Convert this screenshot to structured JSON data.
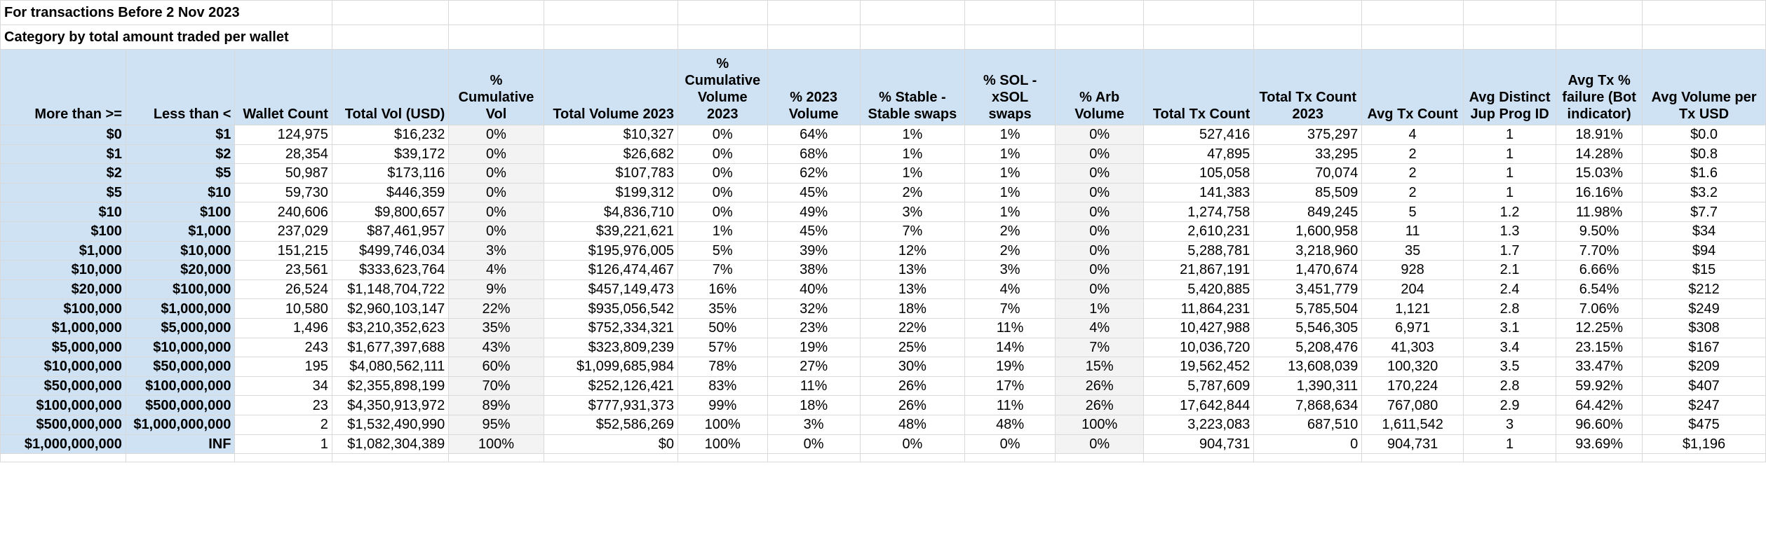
{
  "title": "For transactions Before 2 Nov 2023",
  "subtitle": "Category by total amount traded per wallet",
  "headers": [
    "More than >=",
    "Less than <",
    "Wallet Count",
    "Total Vol (USD)",
    "% Cumulative Vol",
    "Total Volume 2023",
    "% Cumulative Volume 2023",
    "% 2023 Volume",
    "% Stable - Stable swaps",
    "% SOL - xSOL swaps",
    "% Arb Volume",
    "Total Tx Count",
    "Total Tx Count 2023",
    "Avg Tx Count",
    "Avg Distinct Jup Prog ID",
    "Avg Tx % failure (Bot indicator)",
    "Avg Volume per Tx USD"
  ],
  "rows": [
    [
      "$0",
      "$1",
      "124,975",
      "$16,232",
      "0%",
      "$10,327",
      "0%",
      "64%",
      "1%",
      "1%",
      "0%",
      "527,416",
      "375,297",
      "4",
      "1",
      "18.91%",
      "$0.0"
    ],
    [
      "$1",
      "$2",
      "28,354",
      "$39,172",
      "0%",
      "$26,682",
      "0%",
      "68%",
      "1%",
      "1%",
      "0%",
      "47,895",
      "33,295",
      "2",
      "1",
      "14.28%",
      "$0.8"
    ],
    [
      "$2",
      "$5",
      "50,987",
      "$173,116",
      "0%",
      "$107,783",
      "0%",
      "62%",
      "1%",
      "1%",
      "0%",
      "105,058",
      "70,074",
      "2",
      "1",
      "15.03%",
      "$1.6"
    ],
    [
      "$5",
      "$10",
      "59,730",
      "$446,359",
      "0%",
      "$199,312",
      "0%",
      "45%",
      "2%",
      "1%",
      "0%",
      "141,383",
      "85,509",
      "2",
      "1",
      "16.16%",
      "$3.2"
    ],
    [
      "$10",
      "$100",
      "240,606",
      "$9,800,657",
      "0%",
      "$4,836,710",
      "0%",
      "49%",
      "3%",
      "1%",
      "0%",
      "1,274,758",
      "849,245",
      "5",
      "1.2",
      "11.98%",
      "$7.7"
    ],
    [
      "$100",
      "$1,000",
      "237,029",
      "$87,461,957",
      "0%",
      "$39,221,621",
      "1%",
      "45%",
      "7%",
      "2%",
      "0%",
      "2,610,231",
      "1,600,958",
      "11",
      "1.3",
      "9.50%",
      "$34"
    ],
    [
      "$1,000",
      "$10,000",
      "151,215",
      "$499,746,034",
      "3%",
      "$195,976,005",
      "5%",
      "39%",
      "12%",
      "2%",
      "0%",
      "5,288,781",
      "3,218,960",
      "35",
      "1.7",
      "7.70%",
      "$94"
    ],
    [
      "$10,000",
      "$20,000",
      "23,561",
      "$333,623,764",
      "4%",
      "$126,474,467",
      "7%",
      "38%",
      "13%",
      "3%",
      "0%",
      "21,867,191",
      "1,470,674",
      "928",
      "2.1",
      "6.66%",
      "$15"
    ],
    [
      "$20,000",
      "$100,000",
      "26,524",
      "$1,148,704,722",
      "9%",
      "$457,149,473",
      "16%",
      "40%",
      "13%",
      "4%",
      "0%",
      "5,420,885",
      "3,451,779",
      "204",
      "2.4",
      "6.54%",
      "$212"
    ],
    [
      "$100,000",
      "$1,000,000",
      "10,580",
      "$2,960,103,147",
      "22%",
      "$935,056,542",
      "35%",
      "32%",
      "18%",
      "7%",
      "1%",
      "11,864,231",
      "5,785,504",
      "1,121",
      "2.8",
      "7.06%",
      "$249"
    ],
    [
      "$1,000,000",
      "$5,000,000",
      "1,496",
      "$3,210,352,623",
      "35%",
      "$752,334,321",
      "50%",
      "23%",
      "22%",
      "11%",
      "4%",
      "10,427,988",
      "5,546,305",
      "6,971",
      "3.1",
      "12.25%",
      "$308"
    ],
    [
      "$5,000,000",
      "$10,000,000",
      "243",
      "$1,677,397,688",
      "43%",
      "$323,809,239",
      "57%",
      "19%",
      "25%",
      "14%",
      "7%",
      "10,036,720",
      "5,208,476",
      "41,303",
      "3.4",
      "23.15%",
      "$167"
    ],
    [
      "$10,000,000",
      "$50,000,000",
      "195",
      "$4,080,562,111",
      "60%",
      "$1,099,685,984",
      "78%",
      "27%",
      "30%",
      "19%",
      "15%",
      "19,562,452",
      "13,608,039",
      "100,320",
      "3.5",
      "33.47%",
      "$209"
    ],
    [
      "$50,000,000",
      "$100,000,000",
      "34",
      "$2,355,898,199",
      "70%",
      "$252,126,421",
      "83%",
      "11%",
      "26%",
      "17%",
      "26%",
      "5,787,609",
      "1,390,311",
      "170,224",
      "2.8",
      "59.92%",
      "$407"
    ],
    [
      "$100,000,000",
      "$500,000,000",
      "23",
      "$4,350,913,972",
      "89%",
      "$777,931,373",
      "99%",
      "18%",
      "26%",
      "11%",
      "26%",
      "17,642,844",
      "7,868,634",
      "767,080",
      "2.9",
      "64.42%",
      "$247"
    ],
    [
      "$500,000,000",
      "$1,000,000,000",
      "2",
      "$1,532,490,990",
      "95%",
      "$52,586,269",
      "100%",
      "3%",
      "48%",
      "48%",
      "100%",
      "3,223,083",
      "687,510",
      "1,611,542",
      "3",
      "96.60%",
      "$475"
    ],
    [
      "$1,000,000,000",
      "INF",
      "1",
      "$1,082,304,389",
      "100%",
      "$0",
      "100%",
      "0%",
      "0%",
      "0%",
      "0%",
      "904,731",
      "0",
      "904,731",
      "1",
      "93.69%",
      "$1,196"
    ]
  ]
}
